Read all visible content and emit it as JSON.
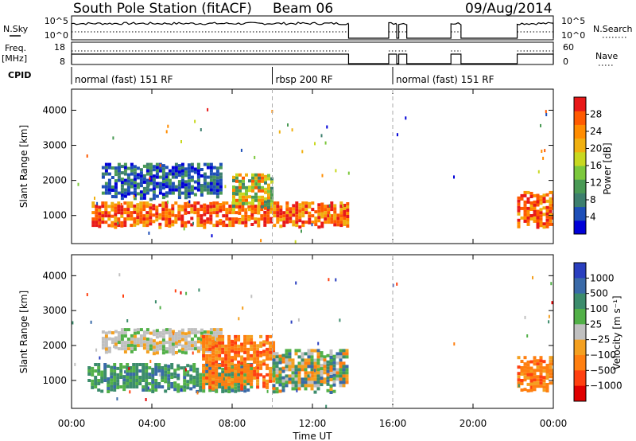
{
  "header": {
    "station": "South Pole Station (fitACF)",
    "beam": "Beam 06",
    "date": "09/Aug/2014"
  },
  "top_panels": {
    "nsky_label": "N.Sky",
    "nsky_ticks": [
      "10^5",
      "10^0"
    ],
    "nsearch_label": "N.Search",
    "nsearch_ticks": [
      "10^5",
      "10^0"
    ],
    "freq_label_line1": "Freq.",
    "freq_label_line2": "[MHz]",
    "freq_ticks": [
      "18",
      "8"
    ],
    "nave_label": "Nave",
    "nave_ticks": [
      "60",
      "0"
    ],
    "cpid_label": "CPID",
    "cpid_modes": [
      {
        "label": "normal (fast) 151 RF",
        "start_hour": 0,
        "end_hour": 10
      },
      {
        "label": "rbsp 200 RF",
        "start_hour": 10,
        "end_hour": 16
      },
      {
        "label": "normal (fast) 151 RF",
        "start_hour": 16,
        "end_hour": 24
      }
    ]
  },
  "chart_data": [
    {
      "type": "heatmap",
      "name": "power",
      "ylabel": "Slant Range [km]",
      "ylim": [
        200,
        4600
      ],
      "xlim": [
        0,
        24
      ],
      "yticks": [
        "1000",
        "2000",
        "3000",
        "4000"
      ],
      "colorbar_label": "Power [dB]",
      "colorbar_ticks": [
        "4",
        "8",
        "12",
        "16",
        "20",
        "24",
        "28"
      ],
      "colorbar_range": [
        0,
        32
      ],
      "colors": [
        "#0000d8",
        "#1e4fb8",
        "#3d7f6e",
        "#4a9a55",
        "#7cc83c",
        "#c8d820",
        "#f0b010",
        "#ff8c00",
        "#ff5a00",
        "#e81818"
      ],
      "echo_bands": [
        {
          "start_hour": 1.0,
          "end_hour": 13.8,
          "range_km": [
            700,
            1400
          ],
          "level": "high"
        },
        {
          "start_hour": 1.5,
          "end_hour": 7.5,
          "range_km": [
            1500,
            2500
          ],
          "level": "low"
        },
        {
          "start_hour": 8.0,
          "end_hour": 10.0,
          "range_km": [
            1200,
            2200
          ],
          "level": "mid"
        },
        {
          "start_hour": 22.2,
          "end_hour": 24.0,
          "range_km": [
            700,
            1700
          ],
          "level": "high"
        }
      ]
    },
    {
      "type": "heatmap",
      "name": "velocity",
      "ylabel": "Slant Range [km]",
      "xlabel": "Time UT",
      "ylim": [
        200,
        4600
      ],
      "xlim": [
        0,
        24
      ],
      "xticks": [
        "00:00",
        "04:00",
        "08:00",
        "12:00",
        "16:00",
        "20:00",
        "00:00"
      ],
      "yticks": [
        "1000",
        "2000",
        "3000",
        "4000"
      ],
      "colorbar_label": "Velocity [m s⁻¹]",
      "colorbar_ticks": [
        "1000",
        "500",
        "100",
        "25",
        "−25",
        "−100",
        "−500",
        "−1000"
      ],
      "colors": [
        "#2a3fbf",
        "#3a6aa8",
        "#3c8c6c",
        "#52b048",
        "#c0c0c0",
        "#f4a020",
        "#ff7f10",
        "#ff4010",
        "#e00000"
      ],
      "echo_bands": [
        {
          "start_hour": 0.8,
          "end_hour": 9.0,
          "range_km": [
            700,
            1500
          ],
          "level": "positive"
        },
        {
          "start_hour": 1.5,
          "end_hour": 7.5,
          "range_km": [
            1800,
            2500
          ],
          "level": "near-zero"
        },
        {
          "start_hour": 6.5,
          "end_hour": 10.0,
          "range_km": [
            800,
            2300
          ],
          "level": "negative"
        },
        {
          "start_hour": 10.0,
          "end_hour": 13.8,
          "range_km": [
            700,
            1900
          ],
          "level": "mixed"
        },
        {
          "start_hour": 22.2,
          "end_hour": 24.0,
          "range_km": [
            700,
            1700
          ],
          "level": "negative"
        }
      ]
    }
  ]
}
